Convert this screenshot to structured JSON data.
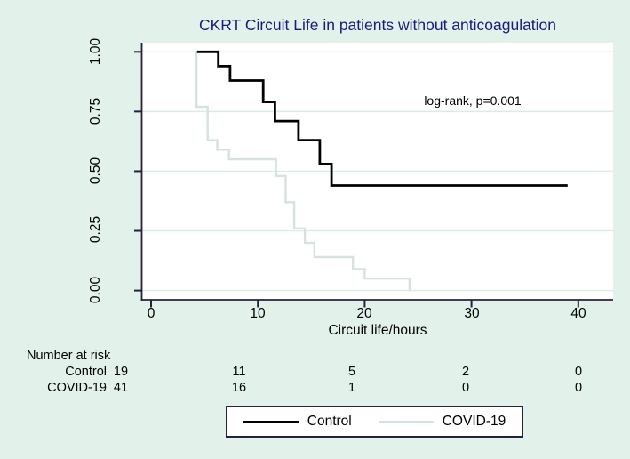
{
  "figure": {
    "background_color": "#e2f1ea",
    "plot_background": "#ffffff"
  },
  "chart_data": {
    "type": "line",
    "subtype": "kaplan-meier-step",
    "title": "CKRT Circuit Life in patients without anticoagulation",
    "title_color": "#1b1b7a",
    "xlabel": "Circuit life/hours",
    "ylabel": "",
    "annotation": "log-rank, p=0.001",
    "xlim": [
      0,
      44
    ],
    "ylim": [
      0,
      1
    ],
    "grid": "horizontal",
    "grid_color": "#d9ede5",
    "axis_color": "#23233f",
    "x_ticks": [
      0,
      10,
      20,
      30,
      40
    ],
    "x_tick_labels": [
      "0",
      "10",
      "20",
      "30",
      "40"
    ],
    "y_ticks": [
      0,
      0.25,
      0.5,
      0.75,
      1
    ],
    "y_tick_labels": [
      "0.00",
      "0.25",
      "0.50",
      "0.75",
      "1.00"
    ],
    "legend_position": "bottom-center",
    "series": [
      {
        "name": "Control",
        "color": "#000000",
        "width": 2.8,
        "points": [
          [
            4.3,
            1.0
          ],
          [
            6.3,
            0.94
          ],
          [
            7.4,
            0.88
          ],
          [
            10.5,
            0.79
          ],
          [
            11.6,
            0.71
          ],
          [
            13.8,
            0.63
          ],
          [
            15.8,
            0.53
          ],
          [
            16.9,
            0.44
          ]
        ],
        "end_time": 39.0
      },
      {
        "name": "COVID-19",
        "color": "#d6e2dc",
        "width": 2.4,
        "points": [
          [
            4.25,
            1.0
          ],
          [
            4.25,
            0.77
          ],
          [
            5.3,
            0.63
          ],
          [
            6.2,
            0.59
          ],
          [
            7.3,
            0.55
          ],
          [
            11.7,
            0.48
          ],
          [
            12.6,
            0.37
          ],
          [
            13.4,
            0.26
          ],
          [
            14.4,
            0.2
          ],
          [
            15.3,
            0.14
          ],
          [
            18.9,
            0.09
          ],
          [
            20.0,
            0.05
          ],
          [
            24.2,
            0.0
          ]
        ],
        "end_time": 24.2
      }
    ]
  },
  "risk_table": {
    "title": "Number at risk",
    "time_points": [
      0,
      10,
      20,
      30,
      40
    ],
    "rows": [
      {
        "label": "Control",
        "counts": [
          "19",
          "11",
          "5",
          "2",
          "0"
        ]
      },
      {
        "label": "COVID-19",
        "counts": [
          "41",
          "16",
          "1",
          "0",
          "0"
        ]
      }
    ]
  },
  "legend": {
    "entries": [
      {
        "label": "Control",
        "color": "#000000"
      },
      {
        "label": "COVID-19",
        "color": "#d6e2dc"
      }
    ]
  }
}
